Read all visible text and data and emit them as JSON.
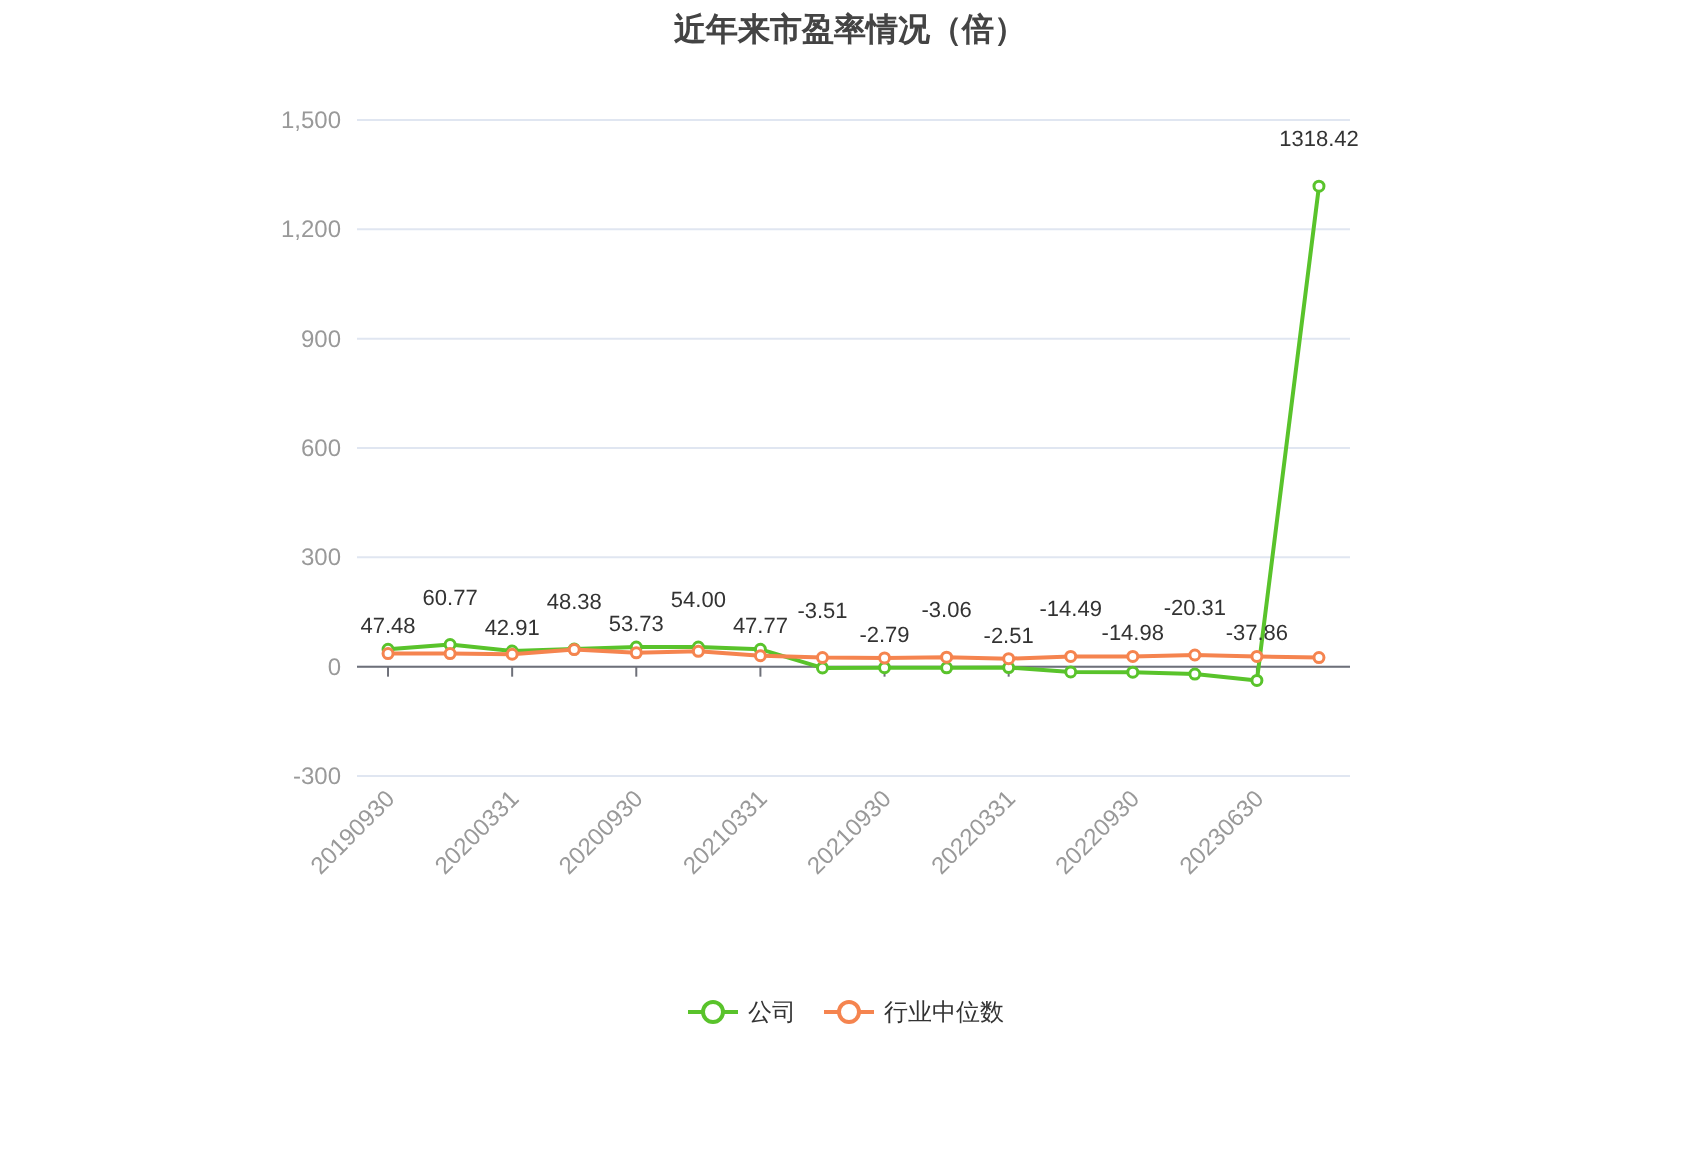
{
  "chart_data": {
    "type": "line",
    "title": "近年来市盈率情况（倍）",
    "categories": [
      "20190930",
      null,
      "20200331",
      null,
      "20200930",
      null,
      "20210331",
      null,
      "20210930",
      null,
      "20220331",
      null,
      "20220930",
      null,
      "20230630",
      null
    ],
    "series": [
      {
        "name": "公司",
        "color": "#59c32b",
        "values": [
          47.48,
          60.77,
          42.91,
          48.38,
          53.73,
          54.0,
          47.77,
          -3.51,
          -2.79,
          -3.06,
          -2.51,
          -14.49,
          -14.98,
          -20.31,
          -37.86,
          1318.42
        ],
        "value_labels": [
          "47.48",
          "60.77",
          "42.91",
          "48.38",
          "53.73",
          "54.00",
          "47.77",
          "-3.51",
          "-2.79",
          "-3.06",
          "-2.51",
          "-14.49",
          "-14.98",
          "-20.31",
          "-37.86",
          "1318.42"
        ]
      },
      {
        "name": "行业中位数",
        "color": "#f5844f",
        "values": [
          36,
          36,
          34,
          47,
          38,
          42,
          30,
          25,
          24,
          26,
          22,
          28,
          28,
          32,
          28,
          25
        ]
      }
    ],
    "ylim": [
      -300,
      1500
    ],
    "yticks": [
      -300,
      0,
      300,
      600,
      900,
      {
        "value": 1200,
        "label": "1,200"
      },
      {
        "value": 1500,
        "label": "1,500"
      }
    ],
    "grid": "y",
    "legend": "bottom",
    "marker": "circle",
    "line_style": "solid"
  }
}
